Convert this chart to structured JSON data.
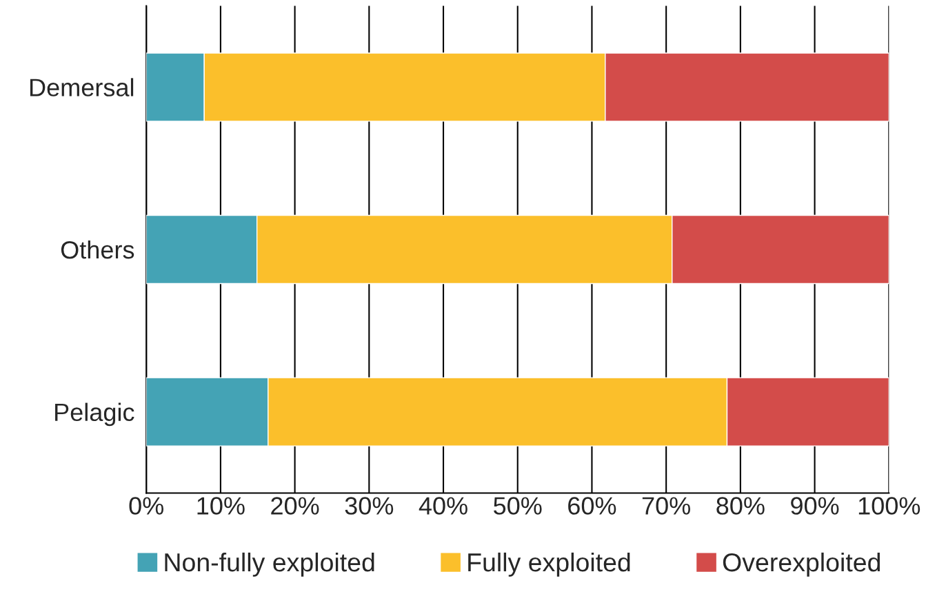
{
  "chart_data": {
    "type": "bar",
    "orientation": "horizontal",
    "stacked": true,
    "categories": [
      "Demersal",
      "Others",
      "Pelagic"
    ],
    "series": [
      {
        "name": "Non-fully exploited",
        "color": "#44a3b5",
        "values": [
          7.8,
          14.9,
          16.4
        ]
      },
      {
        "name": "Fully exploited",
        "color": "#fbbf2b",
        "values": [
          54.0,
          55.9,
          61.8
        ]
      },
      {
        "name": "Overexploited",
        "color": "#d34c4a",
        "values": [
          38.2,
          29.2,
          21.8
        ]
      }
    ],
    "xlim": [
      0,
      100
    ],
    "xticks": [
      {
        "value": 0,
        "label": "0%"
      },
      {
        "value": 10,
        "label": "10%"
      },
      {
        "value": 20,
        "label": "20%"
      },
      {
        "value": 30,
        "label": "30%"
      },
      {
        "value": 40,
        "label": "40%"
      },
      {
        "value": 50,
        "label": "50%"
      },
      {
        "value": 60,
        "label": "60%"
      },
      {
        "value": 70,
        "label": "70%"
      },
      {
        "value": 80,
        "label": "80%"
      },
      {
        "value": 90,
        "label": "90%"
      },
      {
        "value": 100,
        "label": "100%"
      }
    ],
    "grid": "x",
    "legend": "bottom"
  }
}
